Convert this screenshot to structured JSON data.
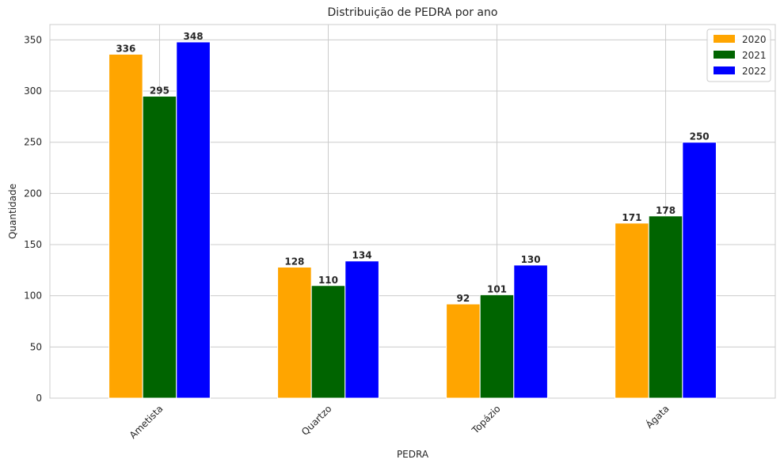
{
  "chart_data": {
    "type": "bar",
    "title": "Distribuição de PEDRA por ano",
    "xlabel": "PEDRA",
    "ylabel": "Quantidade",
    "categories": [
      "Ametista",
      "Quartzo",
      "Topázio",
      "Ágata"
    ],
    "series": [
      {
        "name": "2020",
        "color": "#ffa500",
        "values": [
          336,
          128,
          92,
          171
        ]
      },
      {
        "name": "2021",
        "color": "#006400",
        "values": [
          295,
          110,
          101,
          178
        ]
      },
      {
        "name": "2022",
        "color": "#0000ff",
        "values": [
          348,
          134,
          130,
          250
        ]
      }
    ],
    "ylim": [
      0,
      365
    ],
    "yticks": [
      0,
      50,
      100,
      150,
      200,
      250,
      300,
      350
    ],
    "grid": true,
    "legend_position": "top-right"
  }
}
